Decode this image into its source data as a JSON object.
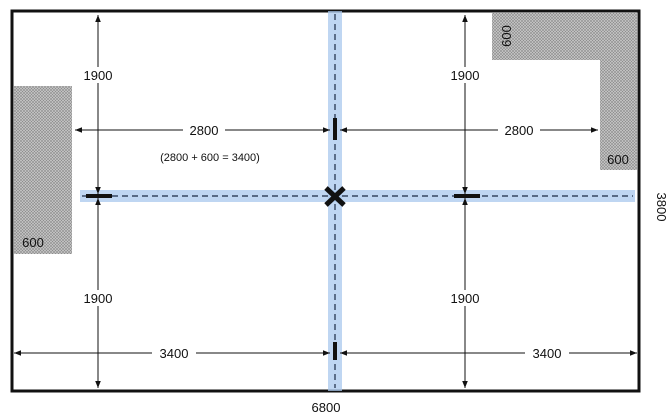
{
  "dimensions": {
    "top_left_vertical": "1900",
    "top_right_vertical": "1900",
    "bottom_left_vertical": "1900",
    "bottom_right_vertical": "1900",
    "left_horizontal_upper": "2800",
    "right_horizontal_upper": "2800",
    "left_horizontal_lower": "3400",
    "right_horizontal_lower": "3400",
    "note": "(2800 + 600 = 3400)",
    "total_width": "6800",
    "total_height": "3800"
  },
  "obstructions": {
    "left_block": "600",
    "top_right_vertical_label": "600",
    "top_right_horizontal_label": "600"
  },
  "colors": {
    "frame": "#111111",
    "centerline_glow": "#a9c8ee",
    "centerline_dash": "#1b2a44",
    "hatch": "#9a9a9a",
    "dimension_line": "#111111"
  }
}
